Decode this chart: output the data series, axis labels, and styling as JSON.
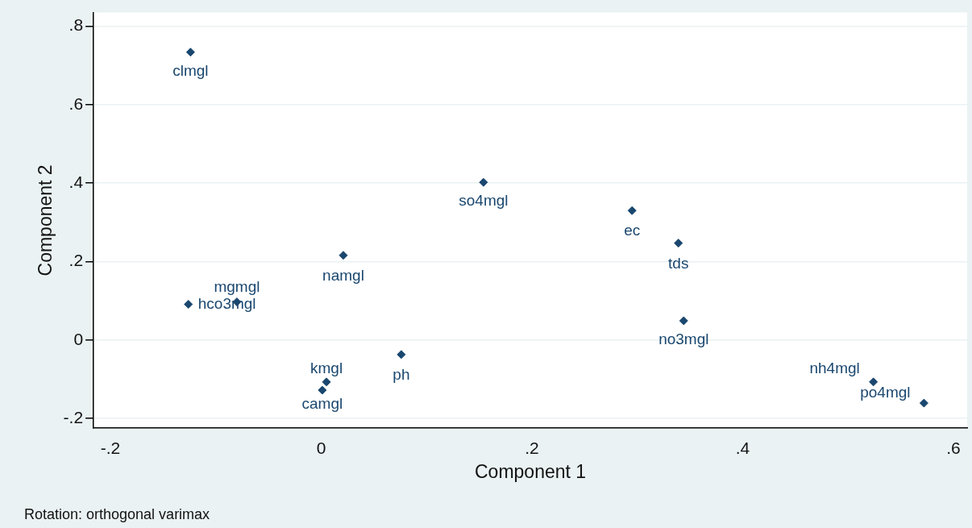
{
  "chart_data": {
    "type": "scatter",
    "xlabel": "Component 1",
    "ylabel": "Component 2",
    "x": [
      -0.124,
      0.154,
      0.295,
      0.339,
      0.021,
      -0.126,
      -0.08,
      0.344,
      0.076,
      0.005,
      0.001,
      0.524,
      0.572
    ],
    "values": [
      0.734,
      0.402,
      0.33,
      0.247,
      0.216,
      0.091,
      0.097,
      0.049,
      -0.037,
      -0.107,
      -0.128,
      -0.107,
      -0.161
    ],
    "value_labels": [
      "clmgl",
      "so4mgl",
      "ec",
      "tds",
      "namgl",
      "hco3mgl",
      "mgmgl",
      "no3mgl",
      "ph",
      "kmgl",
      "camgl",
      "nh4mgl",
      "po4mgl"
    ],
    "color": "#1a476f",
    "marker": "diamond",
    "grid": "y",
    "xlim": [
      -0.216,
      0.613
    ],
    "ylim": [
      -0.225,
      0.835
    ],
    "xticks": [
      {
        "value": -0.2,
        "label": "-.2"
      },
      {
        "value": 0,
        "label": "0"
      },
      {
        "value": 0.2,
        "label": ".2"
      },
      {
        "value": 0.4,
        "label": ".4"
      },
      {
        "value": 0.6,
        "label": ".6"
      }
    ],
    "yticks": [
      {
        "value": -0.2,
        "label": "-.2"
      },
      {
        "value": 0,
        "label": "0"
      },
      {
        "value": 0.2,
        "label": ".2"
      },
      {
        "value": 0.4,
        "label": ".4"
      },
      {
        "value": 0.6,
        "label": ".6"
      },
      {
        "value": 0.8,
        "label": ".8"
      }
    ],
    "annotations": [
      "Rotation: orthogonal varimax"
    ]
  }
}
